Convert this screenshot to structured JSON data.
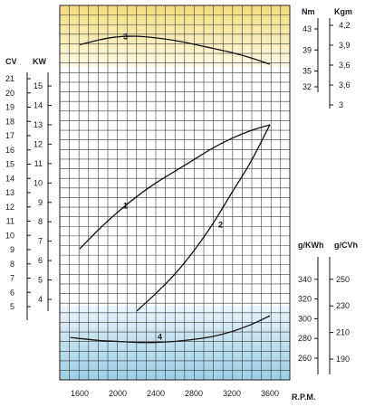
{
  "chart_data": {
    "type": "line",
    "title": "",
    "xlabel": "R.P.M.",
    "x_ticks": [
      1600,
      2000,
      2400,
      2800,
      3200,
      3600
    ],
    "xlim": [
      1400,
      3800
    ],
    "axes": {
      "power_kw": {
        "label": "KW",
        "range": [
          4,
          15
        ],
        "ticks": [
          4,
          5,
          6,
          7,
          8,
          9,
          10,
          11,
          12,
          13,
          14,
          15
        ]
      },
      "power_cv": {
        "label": "CV",
        "range": [
          5,
          21
        ],
        "ticks": [
          5,
          6,
          7,
          8,
          9,
          10,
          11,
          12,
          13,
          14,
          15,
          16,
          17,
          18,
          19,
          20,
          21
        ]
      },
      "torque_nm": {
        "label": "Nm",
        "range": [
          32,
          43
        ],
        "ticks": [
          32,
          35,
          39,
          43
        ]
      },
      "torque_kgm": {
        "label": "Kgm",
        "range": [
          3,
          4.2
        ],
        "ticks": [
          "3",
          "3,6",
          "3,6",
          "3,9",
          "4,2"
        ]
      },
      "consumption_gkwh": {
        "label": "g/KWh",
        "range": [
          260,
          340
        ],
        "ticks": [
          260,
          280,
          300,
          320,
          340
        ]
      },
      "consumption_gcvh": {
        "label": "g/CVh",
        "range": [
          190,
          250
        ],
        "ticks": [
          190,
          210,
          230,
          250
        ]
      }
    },
    "series": [
      {
        "name": "1",
        "axis": "power_kw",
        "x": [
          1600,
          1800,
          2000,
          2200,
          2400,
          2600,
          2800,
          3000,
          3200,
          3400,
          3600
        ],
        "y": [
          6.6,
          7.6,
          8.5,
          9.3,
          10.0,
          10.6,
          11.2,
          11.8,
          12.3,
          12.7,
          13.0
        ]
      },
      {
        "name": "2",
        "axis": "power_kw",
        "x": [
          2200,
          2400,
          2600,
          2800,
          3000,
          3200,
          3400,
          3600
        ],
        "y": [
          3.4,
          4.3,
          5.3,
          6.5,
          7.9,
          9.5,
          11.1,
          13.0
        ]
      },
      {
        "name": "3",
        "axis": "torque_nm",
        "x": [
          1600,
          1800,
          2000,
          2200,
          2400,
          2600,
          2800,
          3000,
          3200,
          3400,
          3600
        ],
        "y": [
          40.0,
          40.9,
          41.5,
          41.6,
          41.3,
          40.8,
          40.1,
          39.3,
          38.5,
          37.5,
          36.3
        ]
      },
      {
        "name": "4",
        "axis": "consumption_gkwh",
        "x": [
          1500,
          1800,
          2000,
          2200,
          2400,
          2600,
          2800,
          3000,
          3200,
          3400,
          3600
        ],
        "y": [
          281,
          278,
          277,
          276,
          276,
          277,
          279,
          282,
          287,
          294,
          303
        ]
      }
    ],
    "grid": true,
    "legend": "none"
  }
}
